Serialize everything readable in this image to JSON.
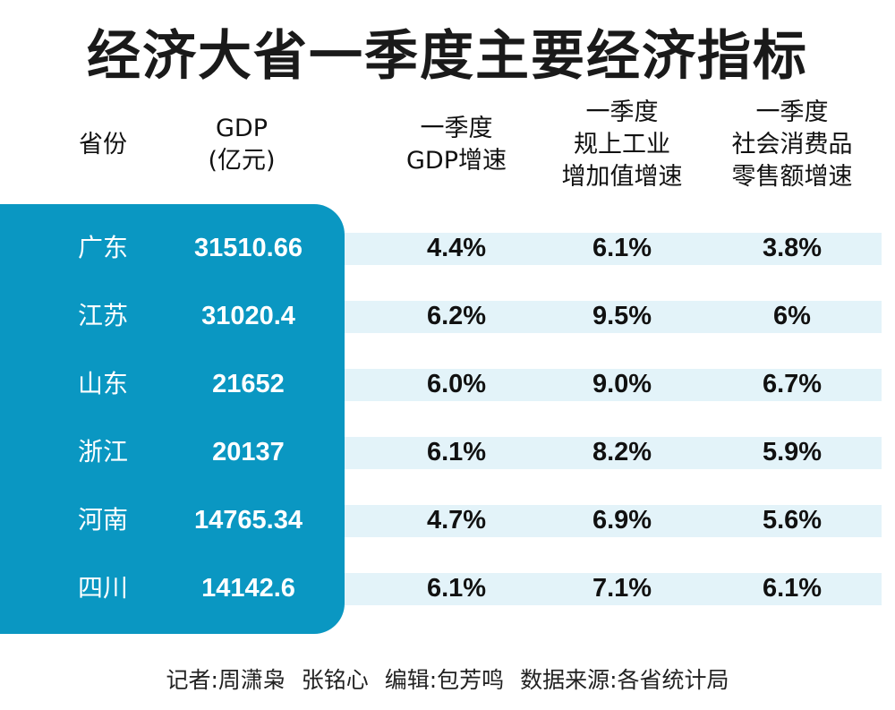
{
  "chart_data": {
    "type": "table",
    "title": "经济大省一季度主要经济指标",
    "columns": [
      "省份",
      "GDP\n(亿元)",
      "一季度\nGDP增速",
      "一季度\n规上工业\n增加值增速",
      "一季度\n社会消费品\n零售额增速"
    ],
    "rows": [
      [
        "广东",
        "31510.66",
        "4.4%",
        "6.1%",
        "3.8%"
      ],
      [
        "江苏",
        "31020.4",
        "6.2%",
        "9.5%",
        "6%"
      ],
      [
        "山东",
        "21652",
        "6.0%",
        "9.0%",
        "6.7%"
      ],
      [
        "浙江",
        "20137",
        "6.1%",
        "8.2%",
        "5.9%"
      ],
      [
        "河南",
        "14765.34",
        "4.7%",
        "6.9%",
        "5.6%"
      ],
      [
        "四川",
        "14142.6",
        "6.1%",
        "7.1%",
        "6.1%"
      ]
    ]
  },
  "header_lines": [
    [
      "省份"
    ],
    [
      "GDP",
      "(亿元)"
    ],
    [
      "一季度",
      "GDP增速"
    ],
    [
      "一季度",
      "规上工业",
      "增加值增速"
    ],
    [
      "一季度",
      "社会消费品",
      "零售额增速"
    ]
  ],
  "footer": "记者:周潇枭 张铭心  编辑:包芳鸣  数据来源:各省统计局",
  "colors": {
    "panel": "#0a97c2",
    "stripe": "#e3f3f9"
  }
}
